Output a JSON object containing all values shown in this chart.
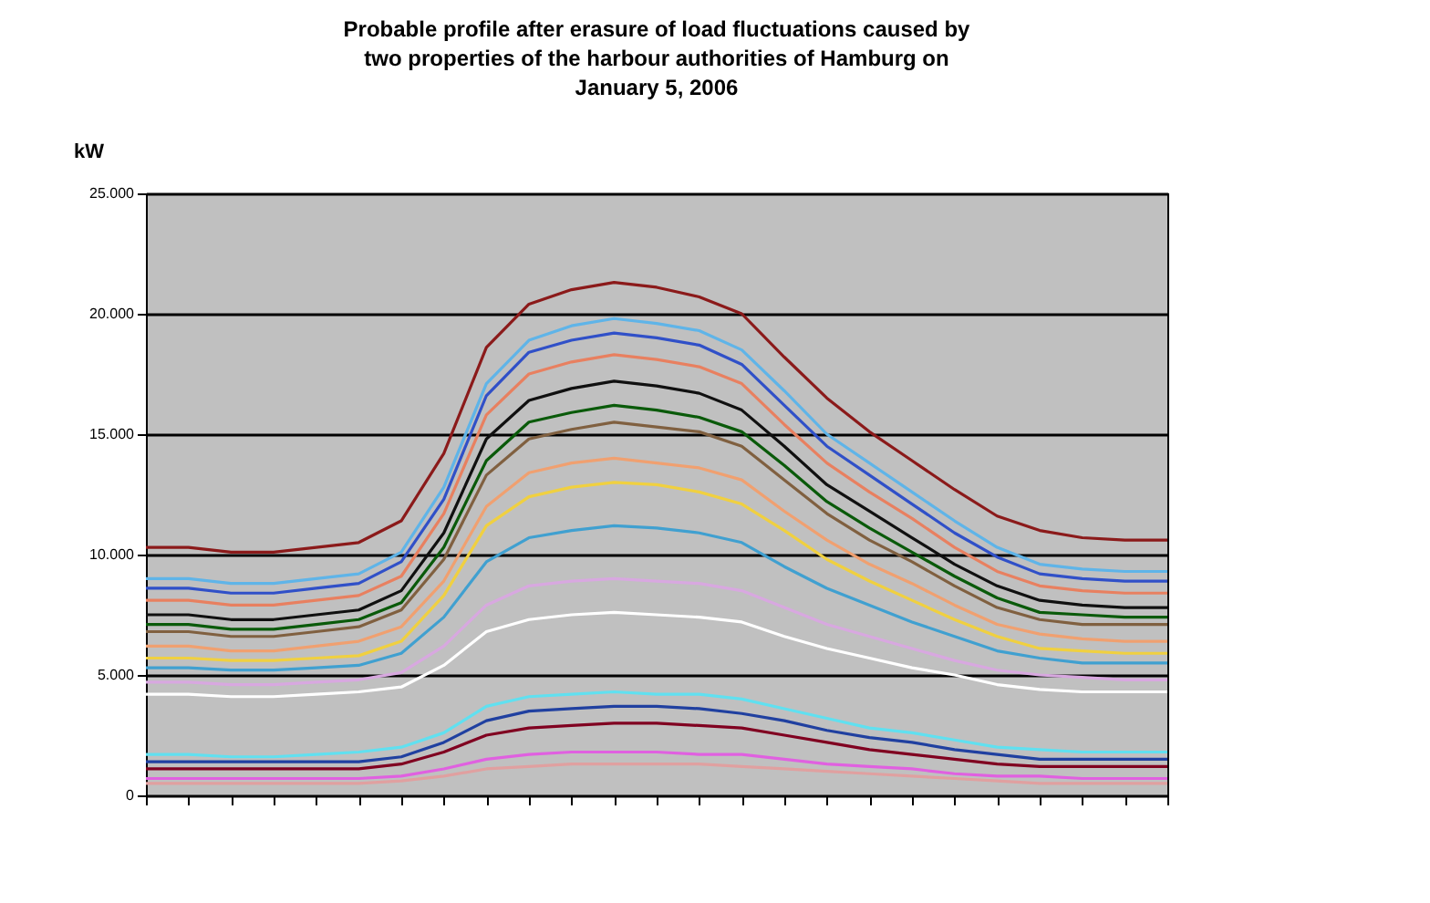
{
  "chart_data": {
    "type": "line",
    "title": "Probable profile after erasure of load fluctuations caused by two properties of the harbour authorities of Hamburg on January 5, 2006",
    "ylabel": "kW",
    "categories": [
      null,
      null,
      null,
      null,
      null,
      null,
      null,
      null,
      null,
      null,
      null,
      null,
      null,
      null,
      null,
      null,
      null,
      null,
      null,
      null,
      null,
      null,
      null,
      null,
      null
    ],
    "ylim": [
      0,
      25000
    ],
    "yticks": [
      0,
      {
        "value": 5000,
        "label": "5.000"
      },
      {
        "value": 10000,
        "label": "10.000"
      },
      {
        "value": 15000,
        "label": "15.000"
      },
      {
        "value": 20000,
        "label": "20.000"
      },
      {
        "value": 25000,
        "label": "25.000"
      }
    ],
    "grid": "y",
    "legend": false,
    "tick_labels": "y",
    "marker": "none",
    "line_style": "solid",
    "series": [
      {
        "color": "#8b1a1a",
        "values": [
          10300,
          10300,
          10100,
          10100,
          10300,
          10500,
          11400,
          14200,
          18600,
          20400,
          21000,
          21300,
          21100,
          20700,
          20000,
          18200,
          16500,
          15100,
          13900,
          12700,
          11600,
          11000,
          10700,
          10600,
          10600
        ]
      },
      {
        "color": "#5fb4e8",
        "values": [
          9000,
          9000,
          8800,
          8800,
          9000,
          9200,
          10100,
          12800,
          17100,
          18900,
          19500,
          19800,
          19600,
          19300,
          18500,
          16800,
          15000,
          13800,
          12600,
          11400,
          10300,
          9600,
          9400,
          9300,
          9300
        ]
      },
      {
        "color": "#3050c8",
        "values": [
          8600,
          8600,
          8400,
          8400,
          8600,
          8800,
          9700,
          12300,
          16600,
          18400,
          18900,
          19200,
          19000,
          18700,
          17900,
          16200,
          14500,
          13300,
          12100,
          10900,
          9900,
          9200,
          9000,
          8900,
          8900
        ]
      },
      {
        "color": "#e88060",
        "values": [
          8100,
          8100,
          7900,
          7900,
          8100,
          8300,
          9100,
          11700,
          15800,
          17500,
          18000,
          18300,
          18100,
          17800,
          17100,
          15400,
          13800,
          12600,
          11500,
          10300,
          9300,
          8700,
          8500,
          8400,
          8400
        ]
      },
      {
        "color": "#101010",
        "values": [
          7500,
          7500,
          7300,
          7300,
          7500,
          7700,
          8500,
          10900,
          14800,
          16400,
          16900,
          17200,
          17000,
          16700,
          16000,
          14500,
          12900,
          11800,
          10700,
          9600,
          8700,
          8100,
          7900,
          7800,
          7800
        ]
      },
      {
        "color": "#0a5a0a",
        "values": [
          7100,
          7100,
          6900,
          6900,
          7100,
          7300,
          8000,
          10300,
          13900,
          15500,
          15900,
          16200,
          16000,
          15700,
          15100,
          13700,
          12200,
          11100,
          10100,
          9100,
          8200,
          7600,
          7500,
          7400,
          7400
        ]
      },
      {
        "color": "#806040",
        "values": [
          6800,
          6800,
          6600,
          6600,
          6800,
          7000,
          7700,
          9800,
          13300,
          14800,
          15200,
          15500,
          15300,
          15100,
          14500,
          13100,
          11700,
          10600,
          9700,
          8700,
          7800,
          7300,
          7100,
          7100,
          7100
        ]
      },
      {
        "color": "#f0a070",
        "values": [
          6200,
          6200,
          6000,
          6000,
          6200,
          6400,
          7000,
          8900,
          12000,
          13400,
          13800,
          14000,
          13800,
          13600,
          13100,
          11800,
          10600,
          9600,
          8800,
          7900,
          7100,
          6700,
          6500,
          6400,
          6400
        ]
      },
      {
        "color": "#f0d040",
        "values": [
          5700,
          5700,
          5600,
          5600,
          5700,
          5800,
          6400,
          8300,
          11200,
          12400,
          12800,
          13000,
          12900,
          12600,
          12100,
          11000,
          9800,
          8900,
          8100,
          7300,
          6600,
          6100,
          6000,
          5900,
          5900
        ]
      },
      {
        "color": "#40a0d0",
        "values": [
          5300,
          5300,
          5200,
          5200,
          5300,
          5400,
          5900,
          7400,
          9700,
          10700,
          11000,
          11200,
          11100,
          10900,
          10500,
          9500,
          8600,
          7900,
          7200,
          6600,
          6000,
          5700,
          5500,
          5500,
          5500
        ]
      },
      {
        "color": "#d8a8e0",
        "values": [
          4700,
          4700,
          4600,
          4600,
          4700,
          4800,
          5100,
          6200,
          7900,
          8700,
          8900,
          9000,
          8900,
          8800,
          8500,
          7800,
          7100,
          6600,
          6100,
          5600,
          5200,
          5000,
          4900,
          4800,
          4800
        ]
      },
      {
        "color": "#ffffff",
        "values": [
          4200,
          4200,
          4100,
          4100,
          4200,
          4300,
          4500,
          5400,
          6800,
          7300,
          7500,
          7600,
          7500,
          7400,
          7200,
          6600,
          6100,
          5700,
          5300,
          5000,
          4600,
          4400,
          4300,
          4300,
          4300
        ]
      },
      {
        "color": "#60e0f0",
        "values": [
          1700,
          1700,
          1600,
          1600,
          1700,
          1800,
          2000,
          2600,
          3700,
          4100,
          4200,
          4300,
          4200,
          4200,
          4000,
          3600,
          3200,
          2800,
          2600,
          2300,
          2000,
          1900,
          1800,
          1800,
          1800
        ]
      },
      {
        "color": "#2040a0",
        "values": [
          1400,
          1400,
          1400,
          1400,
          1400,
          1400,
          1600,
          2200,
          3100,
          3500,
          3600,
          3700,
          3700,
          3600,
          3400,
          3100,
          2700,
          2400,
          2200,
          1900,
          1700,
          1500,
          1500,
          1500,
          1500
        ]
      },
      {
        "color": "#800020",
        "values": [
          1100,
          1100,
          1100,
          1100,
          1100,
          1100,
          1300,
          1800,
          2500,
          2800,
          2900,
          3000,
          3000,
          2900,
          2800,
          2500,
          2200,
          1900,
          1700,
          1500,
          1300,
          1200,
          1200,
          1200,
          1200
        ]
      },
      {
        "color": "#e060e0",
        "values": [
          700,
          700,
          700,
          700,
          700,
          700,
          800,
          1100,
          1500,
          1700,
          1800,
          1800,
          1800,
          1700,
          1700,
          1500,
          1300,
          1200,
          1100,
          900,
          800,
          800,
          700,
          700,
          700
        ]
      },
      {
        "color": "#e0a0a0",
        "values": [
          500,
          500,
          500,
          500,
          500,
          500,
          600,
          800,
          1100,
          1200,
          1300,
          1300,
          1300,
          1300,
          1200,
          1100,
          1000,
          900,
          800,
          700,
          600,
          500,
          500,
          500,
          500
        ]
      }
    ]
  }
}
